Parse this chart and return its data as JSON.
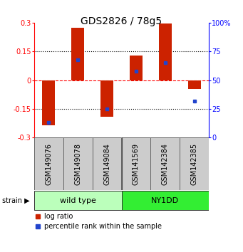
{
  "title": "GDS2826 / 78g5",
  "samples": [
    "GSM149076",
    "GSM149078",
    "GSM149084",
    "GSM141569",
    "GSM142384",
    "GSM142385"
  ],
  "log_ratios": [
    -0.235,
    0.275,
    -0.19,
    0.13,
    0.295,
    -0.045
  ],
  "percentile_ranks": [
    13,
    68,
    25,
    58,
    65,
    32
  ],
  "strains": [
    {
      "label": "wild type",
      "start": 0,
      "end": 3,
      "color": "#bbffbb"
    },
    {
      "label": "NY1DD",
      "start": 3,
      "end": 6,
      "color": "#33ee33"
    }
  ],
  "ylim": [
    -0.3,
    0.3
  ],
  "yticks": [
    -0.3,
    -0.15,
    0,
    0.15,
    0.3
  ],
  "ytick_labels_left": [
    "-0.3",
    "-0.15",
    "0",
    "0.15",
    "0.3"
  ],
  "ytick_labels_right": [
    "0",
    "25",
    "50",
    "75",
    "100%"
  ],
  "yticks_right": [
    0,
    25,
    50,
    75,
    100
  ],
  "bar_color": "#cc2200",
  "blue_color": "#2244cc",
  "title_fontsize": 10,
  "tick_fontsize": 7,
  "sample_fontsize": 7,
  "strain_fontsize": 8,
  "legend_fontsize": 7,
  "bar_width": 0.45
}
